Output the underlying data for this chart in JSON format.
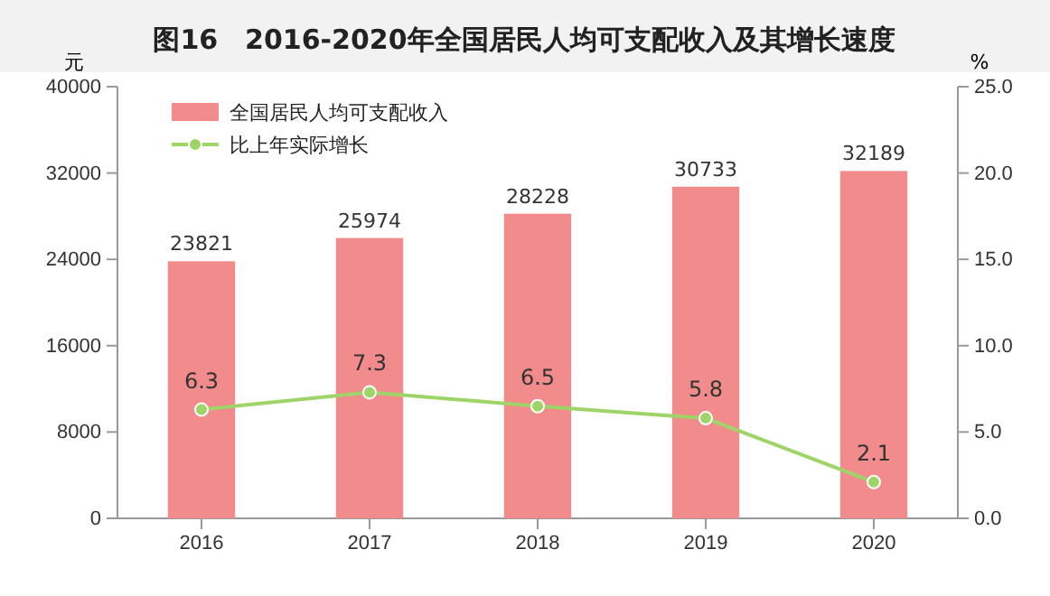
{
  "chart_data": {
    "type": "bar",
    "title": "图16　2016-2020年全国居民人均可支配收入及其增长速度",
    "ylabel": "元",
    "y2label": "%",
    "categories": [
      "2016",
      "2017",
      "2018",
      "2019",
      "2020"
    ],
    "series": [
      {
        "name": "全国居民人均可支配收入",
        "color": "#f28b8b",
        "values": [
          23821,
          25974,
          28228,
          30733,
          32189
        ]
      },
      {
        "name": "比上年实际增长",
        "type": "line",
        "axis": "y2",
        "color": "#9fd468",
        "marker": "circle",
        "values": [
          6.3,
          7.3,
          6.5,
          5.8,
          2.1
        ]
      }
    ],
    "ylim": [
      0,
      40000
    ],
    "yticks": [
      0,
      8000,
      16000,
      24000,
      32000,
      40000
    ],
    "y2lim": [
      0,
      25
    ],
    "y2ticks": [
      {
        "value": 0,
        "label": "0.0"
      },
      {
        "value": 5,
        "label": "5.0"
      },
      {
        "value": 10,
        "label": "10.0"
      },
      {
        "value": 15,
        "label": "15.0"
      },
      {
        "value": 20,
        "label": "20.0"
      },
      {
        "value": 25,
        "label": "25.0"
      }
    ],
    "data_labels": true,
    "legend": "top left",
    "grid": false
  }
}
